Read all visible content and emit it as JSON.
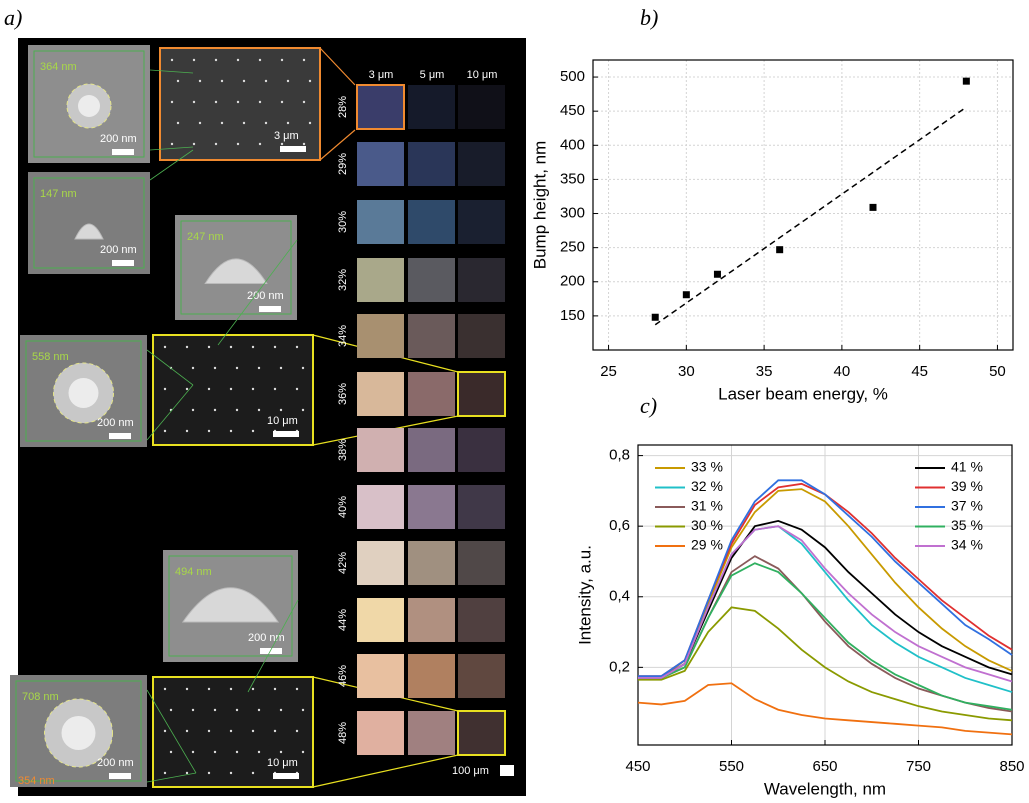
{
  "panel_a": {
    "label": "a)",
    "insets": [
      {
        "height": "364 nm",
        "scale": "200 nm"
      },
      {
        "height": "147 nm",
        "scale": "200 nm"
      },
      {
        "height": "247 nm",
        "scale": "200 nm"
      },
      {
        "height": "558 nm",
        "scale": "200 nm"
      },
      {
        "height": "494 nm",
        "scale": "200 nm"
      },
      {
        "height": "708 nm",
        "inner": "354 nm",
        "scale": "200 nm"
      }
    ],
    "overviews": [
      "3 μm",
      "10 μm",
      "10 μm"
    ],
    "column_headers": [
      "3 μm",
      "5 μm",
      "10 μm"
    ],
    "rows": [
      "28%",
      "29%",
      "30%",
      "32%",
      "34%",
      "36%",
      "38%",
      "40%",
      "42%",
      "44%",
      "46%",
      "48%"
    ],
    "scale_bar": "100 μm"
  },
  "chart_data": [
    {
      "type": "scatter",
      "label": "b)",
      "x_label": "Laser beam energy, %",
      "y_label": "Bump height, nm",
      "x": [
        28,
        30,
        32,
        36,
        42,
        48
      ],
      "values": [
        148,
        181,
        211,
        247,
        309,
        494
      ],
      "color": "#000000",
      "fit": {
        "x": [
          28,
          48
        ],
        "values": [
          137,
          456
        ],
        "dashed": true
      },
      "xlim": [
        24,
        51
      ],
      "xticks": [
        25,
        30,
        35,
        40,
        45,
        50
      ],
      "ylim": [
        100,
        525
      ],
      "yticks": [
        150,
        200,
        250,
        300,
        350,
        400,
        450,
        500
      ],
      "grid": true
    },
    {
      "type": "line",
      "label": "c)",
      "x_label": "Wavelength, nm",
      "y_label": "Intensity, a.u.",
      "x": [
        450,
        475,
        500,
        525,
        550,
        575,
        600,
        625,
        650,
        675,
        700,
        725,
        750,
        775,
        800,
        825,
        850
      ],
      "series": [
        {
          "name": "33 %",
          "color": "#c89a00",
          "values": [
            0.17,
            0.17,
            0.22,
            0.38,
            0.54,
            0.64,
            0.7,
            0.705,
            0.67,
            0.6,
            0.52,
            0.44,
            0.37,
            0.31,
            0.26,
            0.22,
            0.19
          ]
        },
        {
          "name": "32 %",
          "color": "#20c0c8",
          "values": [
            0.17,
            0.17,
            0.21,
            0.37,
            0.52,
            0.59,
            0.6,
            0.55,
            0.47,
            0.39,
            0.32,
            0.27,
            0.23,
            0.2,
            0.17,
            0.15,
            0.13
          ]
        },
        {
          "name": "31 %",
          "color": "#8a5a5a",
          "values": [
            0.17,
            0.17,
            0.2,
            0.34,
            0.47,
            0.515,
            0.48,
            0.41,
            0.33,
            0.26,
            0.21,
            0.17,
            0.14,
            0.12,
            0.1,
            0.085,
            0.075
          ]
        },
        {
          "name": "30 %",
          "color": "#8a9a00",
          "values": [
            0.165,
            0.165,
            0.19,
            0.3,
            0.37,
            0.36,
            0.31,
            0.25,
            0.2,
            0.16,
            0.13,
            0.11,
            0.09,
            0.075,
            0.065,
            0.055,
            0.05
          ]
        },
        {
          "name": "29 %",
          "color": "#f07010",
          "values": [
            0.1,
            0.095,
            0.105,
            0.15,
            0.155,
            0.11,
            0.08,
            0.065,
            0.055,
            0.05,
            0.045,
            0.04,
            0.035,
            0.03,
            0.02,
            0.015,
            0.01
          ]
        },
        {
          "name": "41 %",
          "color": "#000000",
          "values": [
            0.17,
            0.17,
            0.21,
            0.36,
            0.51,
            0.6,
            0.615,
            0.59,
            0.54,
            0.47,
            0.41,
            0.35,
            0.3,
            0.26,
            0.23,
            0.2,
            0.18
          ]
        },
        {
          "name": "39 %",
          "color": "#e03030",
          "values": [
            0.175,
            0.175,
            0.22,
            0.39,
            0.55,
            0.66,
            0.71,
            0.72,
            0.69,
            0.64,
            0.58,
            0.51,
            0.45,
            0.39,
            0.34,
            0.29,
            0.25
          ]
        },
        {
          "name": "37 %",
          "color": "#3070e0",
          "values": [
            0.175,
            0.175,
            0.22,
            0.39,
            0.56,
            0.67,
            0.73,
            0.73,
            0.69,
            0.63,
            0.57,
            0.5,
            0.44,
            0.38,
            0.32,
            0.28,
            0.235
          ]
        },
        {
          "name": "35 %",
          "color": "#30b060",
          "values": [
            0.17,
            0.17,
            0.2,
            0.34,
            0.46,
            0.495,
            0.47,
            0.41,
            0.34,
            0.27,
            0.22,
            0.18,
            0.15,
            0.12,
            0.1,
            0.09,
            0.08
          ]
        },
        {
          "name": "34 %",
          "color": "#c070d0",
          "values": [
            0.17,
            0.17,
            0.21,
            0.37,
            0.52,
            0.59,
            0.6,
            0.56,
            0.48,
            0.41,
            0.35,
            0.3,
            0.26,
            0.23,
            0.2,
            0.18,
            0.16
          ]
        }
      ],
      "xlim": [
        450,
        850
      ],
      "xticks": [
        450,
        550,
        650,
        750,
        850
      ],
      "ylim": [
        -0.02,
        0.83
      ],
      "yticks": [
        {
          "value": 0.2,
          "label": "0,2"
        },
        {
          "value": 0.4,
          "label": "0,4"
        },
        {
          "value": 0.6,
          "label": "0,6"
        },
        {
          "value": 0.8,
          "label": "0,8"
        }
      ],
      "grid": true
    }
  ]
}
